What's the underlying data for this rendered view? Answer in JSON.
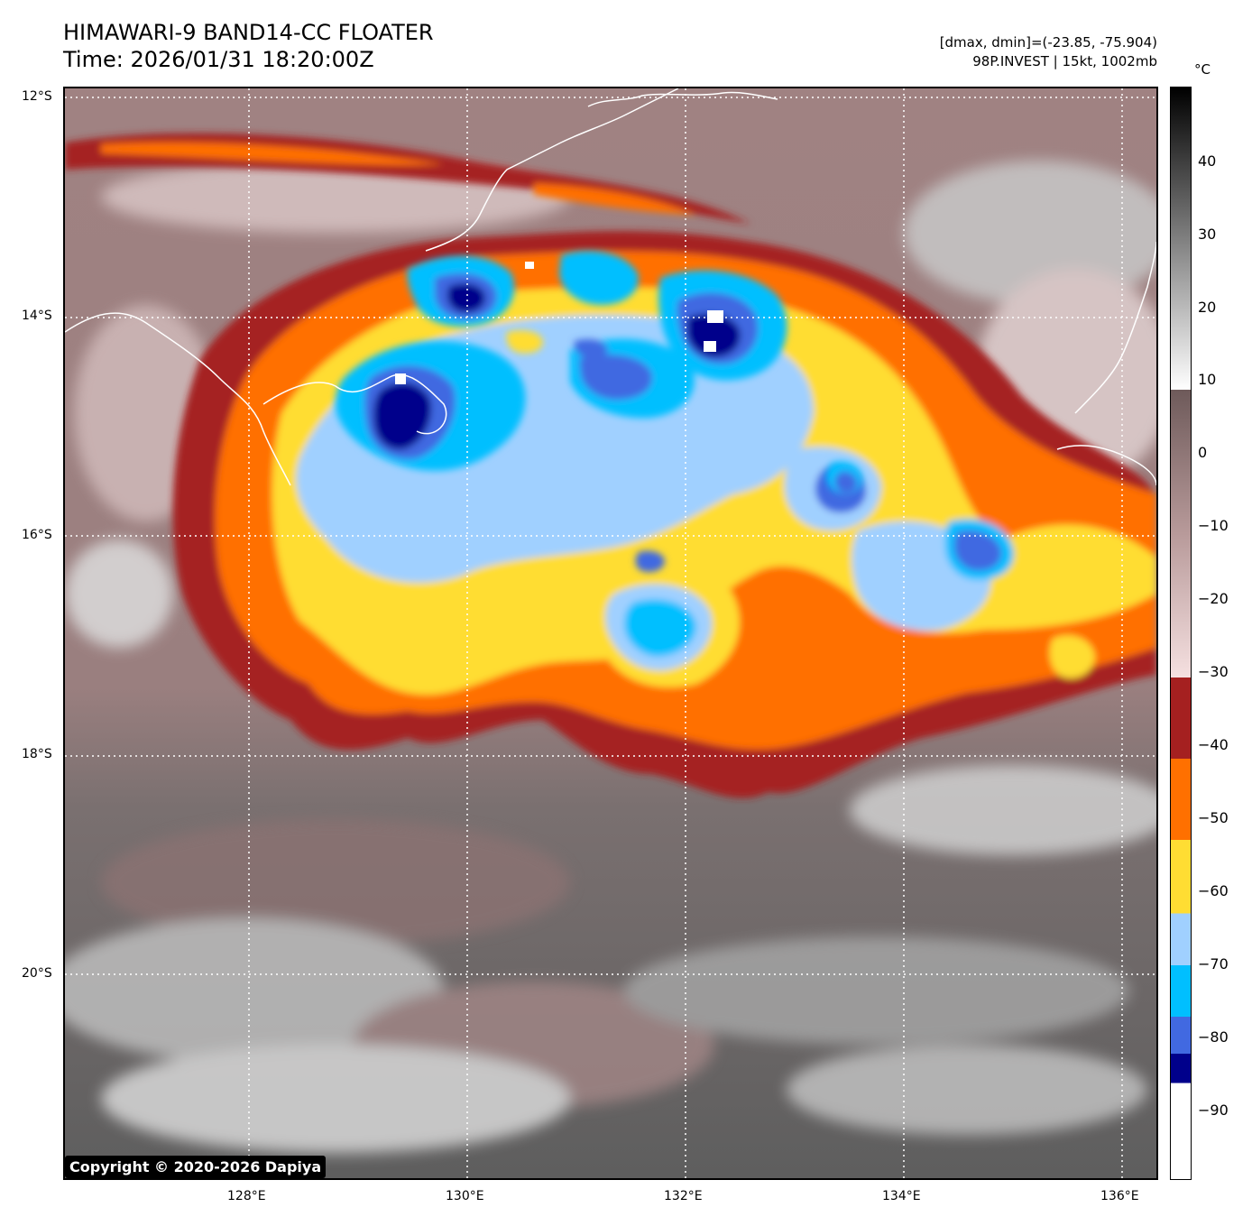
{
  "header": {
    "title_line1": "HIMAWARI-9 BAND14-CC FLOATER",
    "title_line2": "Time: 2026/01/31 18:20:00Z",
    "info_line1": "[dmax, dmin]=(-23.85, -75.904)",
    "info_line2": "98P.INVEST | 15kt, 1002mb"
  },
  "map": {
    "lat_labels": [
      "12°S",
      "14°S",
      "16°S",
      "18°S",
      "20°S"
    ],
    "lon_labels": [
      "128°E",
      "130°E",
      "132°E",
      "134°E",
      "136°E"
    ],
    "copyright": "Copyright © 2020-2026 Dapiya"
  },
  "colorbar": {
    "unit": "°C",
    "tick_labels": [
      "40",
      "30",
      "20",
      "10",
      "0",
      "−10",
      "−20",
      "−30",
      "−40",
      "−50",
      "−60",
      "−70",
      "−80",
      "−90"
    ],
    "bands": [
      {
        "range": [
          -98,
          -85
        ],
        "color": "#ffffff"
      },
      {
        "range": [
          -85,
          -81
        ],
        "color": "#00008b"
      },
      {
        "range": [
          -81,
          -76
        ],
        "color": "#4169e1"
      },
      {
        "range": [
          -76,
          -69
        ],
        "color": "#00bfff"
      },
      {
        "range": [
          -69,
          -62
        ],
        "color": "#a0d0ff"
      },
      {
        "range": [
          -62,
          -52
        ],
        "color": "#ffdd33"
      },
      {
        "range": [
          -52,
          -41
        ],
        "color": "#ff7000"
      },
      {
        "range": [
          -41,
          -30
        ],
        "color": "#a52020"
      },
      {
        "range": [
          -30,
          9
        ],
        "color": "gradient-brown-pink"
      },
      {
        "range": [
          9,
          50
        ],
        "color": "gradient-grayscale"
      }
    ]
  }
}
